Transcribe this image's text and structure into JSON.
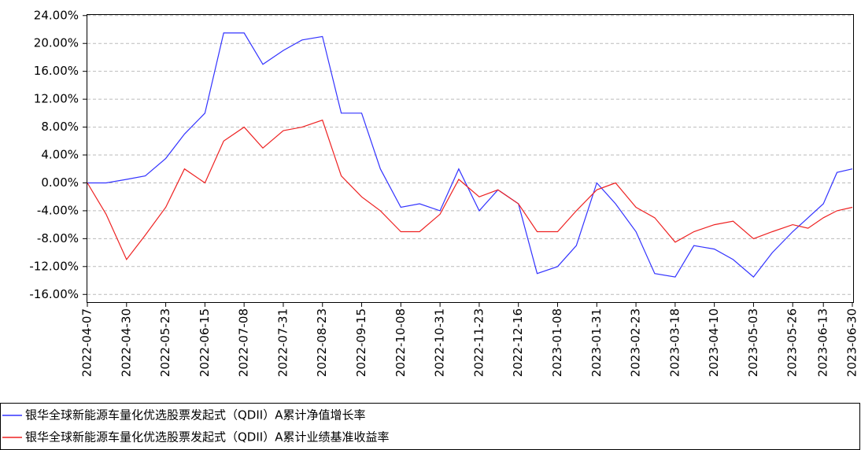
{
  "chart_data": {
    "type": "line",
    "x": [
      "2022-04-07",
      "2022-04-18",
      "2022-04-30",
      "2022-05-11",
      "2022-05-23",
      "2022-06-03",
      "2022-06-15",
      "2022-06-26",
      "2022-07-08",
      "2022-07-19",
      "2022-07-31",
      "2022-08-11",
      "2022-08-23",
      "2022-09-03",
      "2022-09-15",
      "2022-09-26",
      "2022-10-08",
      "2022-10-19",
      "2022-10-31",
      "2022-11-11",
      "2022-11-23",
      "2022-12-04",
      "2022-12-16",
      "2022-12-27",
      "2023-01-08",
      "2023-01-19",
      "2023-01-31",
      "2023-02-11",
      "2023-02-23",
      "2023-03-06",
      "2023-03-18",
      "2023-03-29",
      "2023-04-10",
      "2023-04-21",
      "2023-05-03",
      "2023-05-14",
      "2023-05-26",
      "2023-06-04",
      "2023-06-13",
      "2023-06-21",
      "2023-06-30"
    ],
    "series": [
      {
        "name": "银华全球新能源车量化优选股票发起式（QDII）A累计净值增长率",
        "color": "#3333ff",
        "values": [
          0,
          0,
          0.5,
          1,
          3.5,
          7,
          10,
          21.5,
          21.5,
          17,
          19,
          20.5,
          21,
          10,
          10,
          2,
          -3.5,
          -3,
          -4,
          2,
          -4,
          -1,
          -3,
          -13,
          -12,
          -9,
          0,
          -3,
          -7,
          -13,
          -13.5,
          -9,
          -9.5,
          -11,
          -13.5,
          -10,
          -7,
          -5,
          -3,
          1.5,
          2
        ]
      },
      {
        "name": "银华全球新能源车量化优选股票发起式（QDII）A累计业绩基准收益率",
        "color": "#ee2222",
        "values": [
          0,
          -4.5,
          -11,
          -7.5,
          -3.5,
          2,
          0,
          6,
          8,
          5,
          7.5,
          8,
          9,
          1,
          -2,
          -4,
          -7,
          -7,
          -4.5,
          0.5,
          -2,
          -1,
          -3,
          -7,
          -7,
          -4,
          -1,
          0,
          -3.5,
          -5,
          -8.5,
          -7,
          -6,
          -5.5,
          -8,
          -7,
          -6,
          -6.5,
          -5,
          -4,
          -3.5
        ]
      }
    ],
    "xlim": [
      "2022-04-07",
      "2023-06-30"
    ],
    "xticks": [
      "2022-04-07",
      "2022-04-30",
      "2022-05-23",
      "2022-06-15",
      "2022-07-08",
      "2022-07-31",
      "2022-08-23",
      "2022-09-15",
      "2022-10-08",
      "2022-10-31",
      "2022-11-23",
      "2022-12-16",
      "2023-01-08",
      "2023-01-31",
      "2023-02-23",
      "2023-03-18",
      "2023-04-10",
      "2023-05-03",
      "2023-05-26",
      "2023-06-13",
      "2023-06-30"
    ],
    "ylim": [
      -17.1,
      24.2
    ],
    "yticks": [
      {
        "value": -16,
        "label": "-16.00%"
      },
      {
        "value": -12,
        "label": "-12.00%"
      },
      {
        "value": -8,
        "label": "-8.00%"
      },
      {
        "value": -4,
        "label": "-4.00%"
      },
      {
        "value": 0,
        "label": "0.00%"
      },
      {
        "value": 4,
        "label": "4.00%"
      },
      {
        "value": 8,
        "label": "8.00%"
      },
      {
        "value": 12,
        "label": "12.00%"
      },
      {
        "value": 16,
        "label": "16.00%"
      },
      {
        "value": 20,
        "label": "20.00%"
      },
      {
        "value": 24,
        "label": "24.00%"
      }
    ],
    "grid": true
  }
}
